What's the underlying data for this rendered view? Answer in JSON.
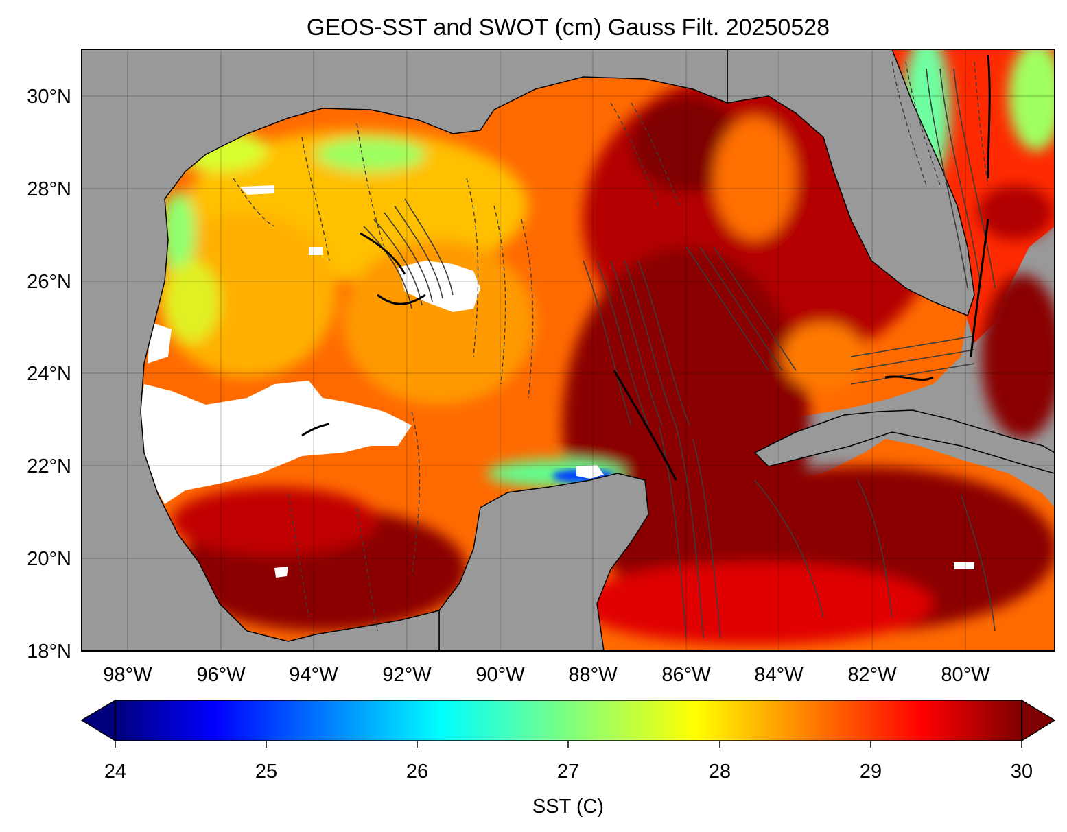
{
  "figure": {
    "title": "GEOS-SST  and SWOT (cm) Gauss Filt. 20250528"
  },
  "map": {
    "extent": {
      "lon": [
        -99,
        -78.1
      ],
      "lat": [
        18,
        31
      ]
    },
    "land_color": "#999999",
    "nodata_color": "#ffffff",
    "grid": true,
    "lat_ticks": [
      {
        "value": 30,
        "label": "30°N"
      },
      {
        "value": 28,
        "label": "28°N"
      },
      {
        "value": 26,
        "label": "26°N"
      },
      {
        "value": 24,
        "label": "24°N"
      },
      {
        "value": 22,
        "label": "22°N"
      },
      {
        "value": 20,
        "label": "20°N"
      },
      {
        "value": 18,
        "label": "18°N"
      }
    ],
    "lon_ticks": [
      {
        "value": -98,
        "label": "98°W"
      },
      {
        "value": -96,
        "label": "96°W"
      },
      {
        "value": -94,
        "label": "94°W"
      },
      {
        "value": -92,
        "label": "92°W"
      },
      {
        "value": -90,
        "label": "90°W"
      },
      {
        "value": -88,
        "label": "88°W"
      },
      {
        "value": -86,
        "label": "86°W"
      },
      {
        "value": -84,
        "label": "84°W"
      },
      {
        "value": -82,
        "label": "82°W"
      },
      {
        "value": -80,
        "label": "80°W"
      }
    ]
  },
  "colorbar": {
    "label": "SST (C)",
    "range": [
      24,
      30
    ],
    "extend": "both",
    "colormap": "jet",
    "ticks": [
      "24",
      "25",
      "26",
      "27",
      "28",
      "29",
      "30"
    ],
    "colors": [
      "#00007f",
      "#0000ff",
      "#007fff",
      "#00ffff",
      "#7fff7f",
      "#ffff00",
      "#ff7f00",
      "#ff0000",
      "#7f0000"
    ]
  }
}
